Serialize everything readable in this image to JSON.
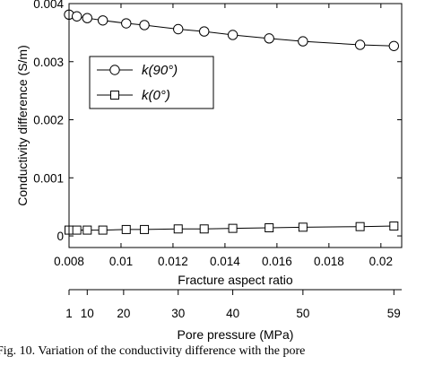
{
  "chart_data": {
    "type": "line",
    "title": "",
    "xlabel": "Fracture aspect ratio",
    "ylabel": "Conductivity difference (S/m)",
    "xlim": [
      0.008,
      0.0208
    ],
    "ylim": [
      -0.0002,
      0.004
    ],
    "x_ticks": [
      0.008,
      0.01,
      0.012,
      0.014,
      0.016,
      0.018,
      0.02
    ],
    "x_tick_labels": [
      "0.008",
      "0.01",
      "0.012",
      "0.014",
      "0.016",
      "0.018",
      "0.02"
    ],
    "y_ticks": [
      0,
      0.001,
      0.002,
      0.003,
      0.004
    ],
    "y_tick_labels": [
      "0",
      "0.001",
      "0.002",
      "0.003",
      "0.004"
    ],
    "secondary_xlabel": "Pore pressure (MPa)",
    "secondary_x_tick_labels": [
      "1",
      "10",
      "20",
      "30",
      "40",
      "50",
      "59"
    ],
    "secondary_x_tick_positions": [
      0.008,
      0.0087,
      0.0101,
      0.0122,
      0.0143,
      0.017,
      0.0205
    ],
    "x": [
      0.008,
      0.0083,
      0.0087,
      0.0093,
      0.0102,
      0.0109,
      0.0122,
      0.0132,
      0.0143,
      0.0157,
      0.017,
      0.0192,
      0.0205
    ],
    "series": [
      {
        "name": "k(90°)",
        "marker": "circle",
        "values": [
          0.00381,
          0.00378,
          0.00375,
          0.00371,
          0.00366,
          0.00363,
          0.00356,
          0.00352,
          0.00346,
          0.0034,
          0.00335,
          0.00329,
          0.00327
        ]
      },
      {
        "name": "k(0°)",
        "marker": "square",
        "values": [
          0.0001,
          0.0001,
          0.0001,
          0.0001,
          0.00011,
          0.00011,
          0.00012,
          0.00012,
          0.00013,
          0.00014,
          0.00015,
          0.00016,
          0.00017
        ]
      }
    ],
    "legend": {
      "position": "upper-left",
      "entries": [
        "k(90°)",
        "k(0°)"
      ]
    },
    "grid": false
  },
  "caption": {
    "text": "Fig. 10.    Variation of the conductivity difference with the pore"
  }
}
